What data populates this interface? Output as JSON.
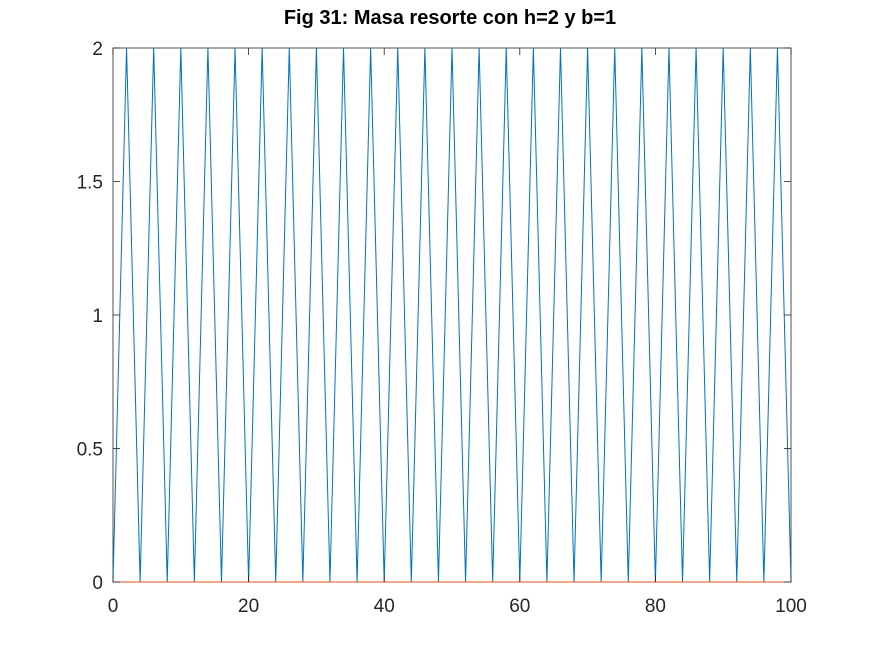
{
  "chart_data": {
    "type": "line",
    "title": "Fig 31: Masa resorte con h=2 y b=1",
    "xlabel": "",
    "ylabel": "",
    "xlim": [
      0,
      100
    ],
    "ylim": [
      0,
      2
    ],
    "x_ticks": [
      0,
      20,
      40,
      60,
      80,
      100
    ],
    "y_ticks": [
      0,
      0.5,
      1,
      1.5,
      2
    ],
    "x_tick_labels": [
      "0",
      "20",
      "40",
      "60",
      "80",
      "100"
    ],
    "y_tick_labels": [
      "0",
      "0.5",
      "1",
      "1.5",
      "2"
    ],
    "grid": false,
    "legend": "none",
    "series": [
      {
        "color": "#0072BD",
        "x": [
          0,
          2,
          4,
          6,
          8,
          10,
          12,
          14,
          16,
          18,
          20,
          22,
          24,
          26,
          28,
          30,
          32,
          34,
          36,
          38,
          40,
          42,
          44,
          46,
          48,
          50,
          52,
          54,
          56,
          58,
          60,
          62,
          64,
          66,
          68,
          70,
          72,
          74,
          76,
          78,
          80,
          82,
          84,
          86,
          88,
          90,
          92,
          94,
          96,
          98,
          100
        ],
        "y": [
          0,
          2,
          0,
          2,
          0,
          2,
          0,
          2,
          0,
          2,
          0,
          2,
          0,
          2,
          0,
          2,
          0,
          2,
          0,
          2,
          0,
          2,
          0,
          2,
          0,
          2,
          0,
          2,
          0,
          2,
          0,
          2,
          0,
          2,
          0,
          2,
          0,
          2,
          0,
          2,
          0,
          2,
          0,
          2,
          0,
          2,
          0,
          2,
          0,
          2,
          0
        ]
      },
      {
        "color": "#D95319",
        "x": [
          0,
          100
        ],
        "y": [
          0,
          0
        ]
      }
    ]
  }
}
